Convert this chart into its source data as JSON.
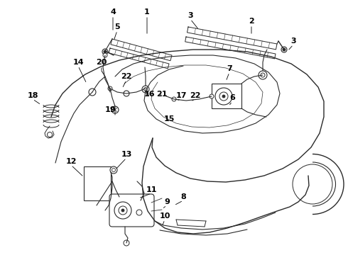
{
  "bg_color": "#ffffff",
  "line_color": "#2a2a2a",
  "label_color": "#000000",
  "lw": 0.75,
  "labels": [
    [
      "4",
      159,
      17
    ],
    [
      "1",
      207,
      17
    ],
    [
      "3",
      268,
      22
    ],
    [
      "2",
      354,
      30
    ],
    [
      "3",
      413,
      58
    ],
    [
      "5",
      165,
      38
    ],
    [
      "14",
      110,
      88
    ],
    [
      "20",
      143,
      88
    ],
    [
      "22",
      178,
      108
    ],
    [
      "7",
      323,
      97
    ],
    [
      "6",
      327,
      138
    ],
    [
      "18",
      46,
      135
    ],
    [
      "16",
      210,
      133
    ],
    [
      "21",
      228,
      133
    ],
    [
      "17",
      255,
      135
    ],
    [
      "22",
      275,
      135
    ],
    [
      "19",
      155,
      155
    ],
    [
      "15",
      238,
      168
    ],
    [
      "13",
      178,
      218
    ],
    [
      "12",
      100,
      228
    ],
    [
      "11",
      213,
      268
    ],
    [
      "9",
      235,
      285
    ],
    [
      "8",
      258,
      278
    ],
    [
      "10",
      232,
      305
    ]
  ]
}
